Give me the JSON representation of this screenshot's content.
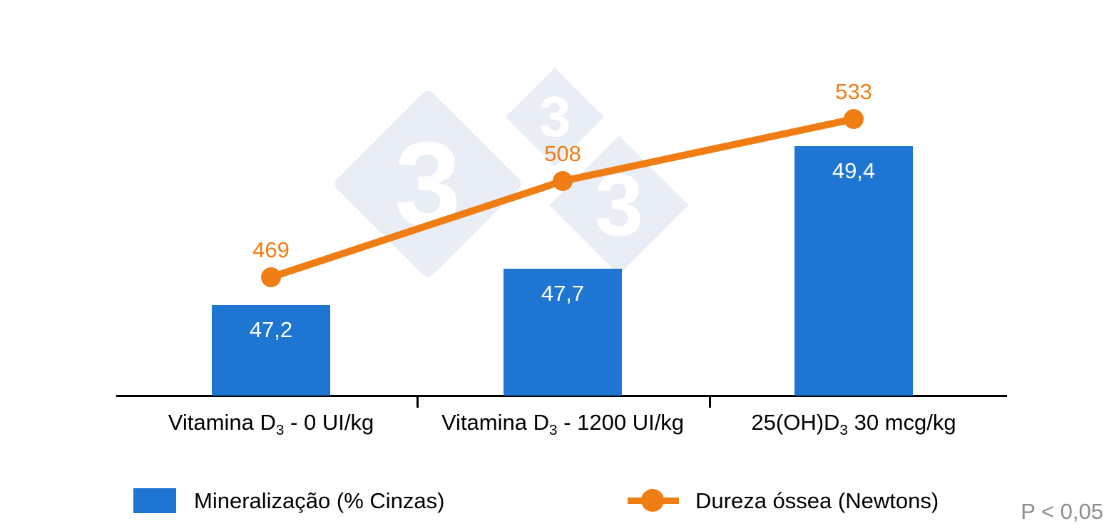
{
  "watermark": {
    "digit": "3",
    "color": "#e9eef6",
    "digit_color": "#ffffff"
  },
  "chart_data": {
    "type": "combo_bar_line",
    "title": "",
    "categories": [
      {
        "text": "Vitamina D3 - 0 UI/kg",
        "prefix": "Vitamina D",
        "sub": "3",
        "suffix": " - 0 UI/kg"
      },
      {
        "text": "Vitamina D3 - 1200 UI/kg",
        "prefix": "Vitamina D",
        "sub": "3",
        "suffix": " - 1200 UI/kg"
      },
      {
        "text": "25(OH)D3 30 mcg/kg",
        "prefix": "25(OH)D",
        "sub": "3",
        "suffix": " 30 mcg/kg"
      }
    ],
    "series": [
      {
        "name": "Mineralização (% Cinzas)",
        "type": "bar",
        "color": "#1f75d2",
        "values": [
          47.2,
          47.7,
          49.4
        ],
        "value_labels": [
          "47,2",
          "47,7",
          "49,4"
        ]
      },
      {
        "name": "Dureza óssea (Newtons)",
        "type": "line",
        "color": "#f07d14",
        "values": [
          469,
          508,
          533
        ],
        "value_labels": [
          "469",
          "508",
          "533"
        ]
      }
    ],
    "bar_axis": {
      "min": 45.95,
      "max": 49.6
    },
    "line_axis": {
      "min": 421,
      "max": 545
    },
    "grid": false,
    "legend_position": "bottom",
    "annotation": "P < 0,05",
    "annotation_color": "#8d8d8d"
  }
}
